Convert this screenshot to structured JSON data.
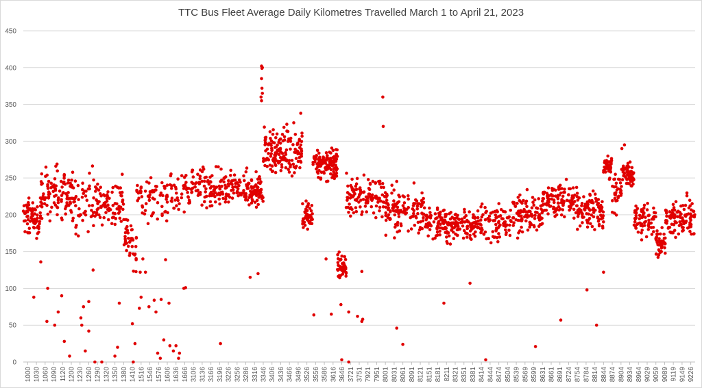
{
  "chart_data": {
    "type": "scatter",
    "title": "TTC Bus Fleet Average Daily Kilometres Travelled March 1 to April 21, 2023",
    "xlabel": "",
    "ylabel": "",
    "ylim": [
      0,
      450
    ],
    "yticks": [
      0,
      50,
      100,
      150,
      200,
      250,
      300,
      350,
      400,
      450
    ],
    "grid": true,
    "legend": "none",
    "marker_color": "#e00000",
    "x_tick_labels": [
      "1000",
      "1030",
      "1060",
      "1090",
      "1120",
      "1200",
      "1230",
      "1260",
      "1290",
      "1320",
      "1350",
      "1380",
      "1410",
      "1516",
      "1546",
      "1576",
      "1606",
      "1636",
      "1666",
      "3106",
      "3136",
      "3166",
      "3196",
      "3226",
      "3256",
      "3286",
      "3316",
      "3346",
      "3406",
      "3436",
      "3466",
      "3496",
      "3526",
      "3556",
      "3586",
      "3616",
      "3646",
      "3721",
      "3751",
      "7921",
      "7951",
      "8001",
      "8031",
      "8061",
      "8091",
      "8121",
      "8151",
      "8181",
      "8211",
      "8321",
      "8351",
      "8381",
      "8414",
      "8444",
      "8474",
      "8504",
      "8539",
      "8569",
      "8599",
      "8631",
      "8661",
      "8691",
      "8724",
      "8754",
      "8784",
      "8814",
      "8844",
      "8874",
      "8904",
      "8934",
      "8964",
      "9029",
      "9059",
      "9089",
      "9119",
      "9149",
      "9226"
    ],
    "segments": [
      {
        "from": 0.0,
        "to": 2.0,
        "mean": 195,
        "spread": 22,
        "count": 70
      },
      {
        "from": 2.0,
        "to": 6.0,
        "mean": 230,
        "spread": 30,
        "count": 110
      },
      {
        "from": 6.0,
        "to": 11.5,
        "mean": 215,
        "spread": 35,
        "count": 120
      },
      {
        "from": 11.5,
        "to": 13.0,
        "mean": 165,
        "spread": 30,
        "count": 40
      },
      {
        "from": 13.0,
        "to": 18.5,
        "mean": 225,
        "spread": 28,
        "count": 90
      },
      {
        "from": 18.5,
        "to": 27.5,
        "mean": 235,
        "spread": 22,
        "count": 240
      },
      {
        "from": 27.5,
        "to": 32.0,
        "mean": 285,
        "spread": 25,
        "count": 150
      },
      {
        "from": 32.0,
        "to": 33.2,
        "mean": 200,
        "spread": 15,
        "count": 45
      },
      {
        "from": 33.2,
        "to": 36.0,
        "mean": 270,
        "spread": 22,
        "count": 110
      },
      {
        "from": 36.0,
        "to": 37.0,
        "mean": 130,
        "spread": 18,
        "count": 45
      },
      {
        "from": 37.0,
        "to": 41.5,
        "mean": 225,
        "spread": 25,
        "count": 110
      },
      {
        "from": 41.5,
        "to": 46.0,
        "mean": 205,
        "spread": 25,
        "count": 120
      },
      {
        "from": 46.0,
        "to": 56.0,
        "mean": 188,
        "spread": 20,
        "count": 270
      },
      {
        "from": 56.0,
        "to": 59.5,
        "mean": 200,
        "spread": 22,
        "count": 100
      },
      {
        "from": 59.5,
        "to": 63.5,
        "mean": 220,
        "spread": 18,
        "count": 120
      },
      {
        "from": 63.5,
        "to": 66.5,
        "mean": 205,
        "spread": 25,
        "count": 90
      },
      {
        "from": 66.5,
        "to": 67.5,
        "mean": 265,
        "spread": 12,
        "count": 45
      },
      {
        "from": 67.5,
        "to": 68.6,
        "mean": 230,
        "spread": 25,
        "count": 35
      },
      {
        "from": 68.6,
        "to": 70.0,
        "mean": 255,
        "spread": 15,
        "count": 60
      },
      {
        "from": 70.0,
        "to": 72.5,
        "mean": 195,
        "spread": 20,
        "count": 70
      },
      {
        "from": 72.5,
        "to": 73.6,
        "mean": 160,
        "spread": 15,
        "count": 45
      },
      {
        "from": 73.6,
        "to": 77.0,
        "mean": 195,
        "spread": 22,
        "count": 110
      }
    ],
    "notable_points": [
      {
        "x": 27.3,
        "y": 402
      },
      {
        "x": 27.35,
        "y": 399
      },
      {
        "x": 27.4,
        "y": 400
      },
      {
        "x": 27.25,
        "y": 360
      },
      {
        "x": 27.3,
        "y": 355
      },
      {
        "x": 27.4,
        "y": 365
      },
      {
        "x": 27.35,
        "y": 372
      },
      {
        "x": 27.3,
        "y": 385
      },
      {
        "x": 41.2,
        "y": 360
      },
      {
        "x": 41.25,
        "y": 320
      },
      {
        "x": 31.8,
        "y": 338
      },
      {
        "x": 31.0,
        "y": 325
      },
      {
        "x": 30.2,
        "y": 323
      },
      {
        "x": 68.9,
        "y": 295
      },
      {
        "x": 68.6,
        "y": 290
      },
      {
        "x": 1.2,
        "y": 88
      },
      {
        "x": 2.0,
        "y": 136
      },
      {
        "x": 2.8,
        "y": 100
      },
      {
        "x": 2.7,
        "y": 55
      },
      {
        "x": 3.6,
        "y": 50
      },
      {
        "x": 4.0,
        "y": 68
      },
      {
        "x": 4.4,
        "y": 90
      },
      {
        "x": 4.7,
        "y": 28
      },
      {
        "x": 5.3,
        "y": 8
      },
      {
        "x": 6.6,
        "y": 60
      },
      {
        "x": 6.7,
        "y": 50
      },
      {
        "x": 6.9,
        "y": 75
      },
      {
        "x": 7.1,
        "y": 15
      },
      {
        "x": 7.5,
        "y": 82
      },
      {
        "x": 7.5,
        "y": 42
      },
      {
        "x": 8.0,
        "y": 125
      },
      {
        "x": 8.2,
        "y": 0
      },
      {
        "x": 9.0,
        "y": 0
      },
      {
        "x": 10.5,
        "y": 8
      },
      {
        "x": 10.8,
        "y": 20
      },
      {
        "x": 11.0,
        "y": 80
      },
      {
        "x": 12.5,
        "y": 52
      },
      {
        "x": 12.8,
        "y": 25
      },
      {
        "x": 12.6,
        "y": 0
      },
      {
        "x": 13.3,
        "y": 73
      },
      {
        "x": 13.5,
        "y": 88
      },
      {
        "x": 13.4,
        "y": 122
      },
      {
        "x": 13.7,
        "y": 140
      },
      {
        "x": 14.0,
        "y": 122
      },
      {
        "x": 14.3,
        "y": 188
      },
      {
        "x": 14.4,
        "y": 75
      },
      {
        "x": 15.0,
        "y": 84
      },
      {
        "x": 15.2,
        "y": 68
      },
      {
        "x": 15.4,
        "y": 12
      },
      {
        "x": 15.7,
        "y": 5
      },
      {
        "x": 15.8,
        "y": 85
      },
      {
        "x": 16.1,
        "y": 30
      },
      {
        "x": 16.3,
        "y": 139
      },
      {
        "x": 16.7,
        "y": 80
      },
      {
        "x": 16.8,
        "y": 22
      },
      {
        "x": 17.2,
        "y": 15
      },
      {
        "x": 17.5,
        "y": 22
      },
      {
        "x": 17.8,
        "y": 5
      },
      {
        "x": 17.9,
        "y": 12
      },
      {
        "x": 18.4,
        "y": 100
      },
      {
        "x": 18.6,
        "y": 101
      },
      {
        "x": 22.6,
        "y": 25
      },
      {
        "x": 26.0,
        "y": 115
      },
      {
        "x": 26.9,
        "y": 120
      },
      {
        "x": 33.3,
        "y": 64
      },
      {
        "x": 34.7,
        "y": 140
      },
      {
        "x": 35.3,
        "y": 65
      },
      {
        "x": 36.5,
        "y": 3
      },
      {
        "x": 37.3,
        "y": 0
      },
      {
        "x": 36.4,
        "y": 78
      },
      {
        "x": 37.3,
        "y": 68
      },
      {
        "x": 38.3,
        "y": 62
      },
      {
        "x": 38.8,
        "y": 55
      },
      {
        "x": 38.9,
        "y": 58
      },
      {
        "x": 38.8,
        "y": 123
      },
      {
        "x": 42.8,
        "y": 46
      },
      {
        "x": 43.5,
        "y": 24
      },
      {
        "x": 48.2,
        "y": 80
      },
      {
        "x": 51.2,
        "y": 107
      },
      {
        "x": 53.0,
        "y": 3
      },
      {
        "x": 58.7,
        "y": 21
      },
      {
        "x": 61.6,
        "y": 57
      },
      {
        "x": 64.6,
        "y": 98
      },
      {
        "x": 65.7,
        "y": 50
      },
      {
        "x": 66.5,
        "y": 122
      }
    ]
  }
}
